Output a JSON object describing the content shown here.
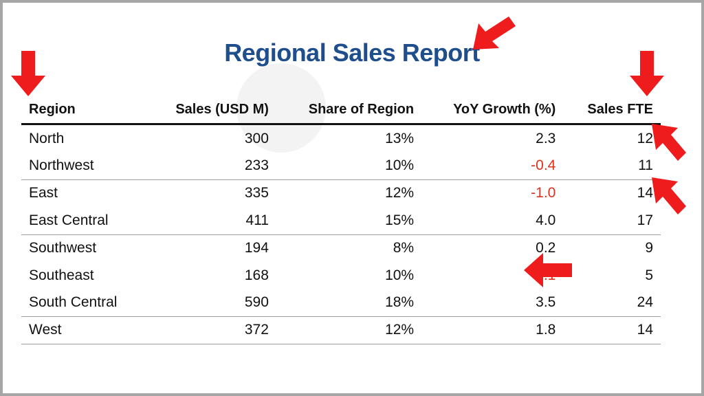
{
  "title": "Regional Sales Report",
  "table": {
    "headers": [
      "Region",
      "Sales (USD M)",
      "Share of Region",
      "YoY Growth (%)",
      "Sales FTE"
    ],
    "rows": [
      [
        "North",
        "300",
        "13%",
        "2.3",
        "12"
      ],
      [
        "Northwest",
        "233",
        "10%",
        "-0.4",
        "11"
      ],
      [
        "East",
        "335",
        "12%",
        "-1.0",
        "14"
      ],
      [
        "East Central",
        "411",
        "15%",
        "4.0",
        "17"
      ],
      [
        "Southwest",
        "194",
        "8%",
        "0.2",
        "9"
      ],
      [
        "Southeast",
        "168",
        "10%",
        "-2.1",
        "5"
      ],
      [
        "South Central",
        "590",
        "18%",
        "3.5",
        "24"
      ],
      [
        "West",
        "372",
        "12%",
        "1.8",
        "14"
      ]
    ]
  },
  "colors": {
    "title": "#1f4e8c",
    "negative": "#e0301e",
    "arrow": "#ee1c1c"
  },
  "annotations": {
    "arrows": [
      "arrow-title",
      "arrow-region-header",
      "arrow-fte-header",
      "arrow-row-north",
      "arrow-row-east",
      "arrow-cell-southeast-growth"
    ]
  }
}
